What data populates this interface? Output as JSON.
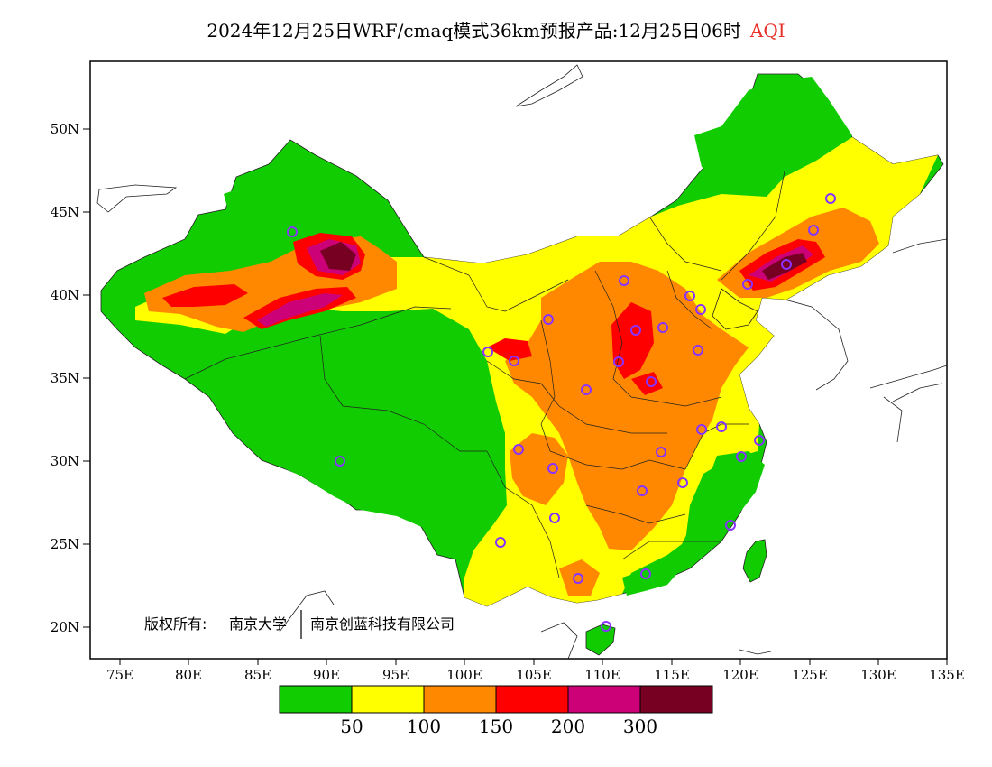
{
  "title": {
    "main": "2024年12月25日WRF/cmaq模式36km预报产品:12月25日06时",
    "variable": "AQI"
  },
  "axes": {
    "lat_ticks": [
      "50N",
      "45N",
      "40N",
      "35N",
      "30N",
      "25N",
      "20N"
    ],
    "lon_ticks": [
      "75E",
      "80E",
      "85E",
      "90E",
      "95E",
      "100E",
      "105E",
      "110E",
      "115E",
      "120E",
      "125E",
      "130E",
      "135E"
    ]
  },
  "copyright": {
    "prefix": "版权所有:",
    "org1": "南京大学",
    "org2": "南京创蓝科技有限公司"
  },
  "legend": {
    "colors": [
      "#11cc00",
      "#ffff00",
      "#ff8800",
      "#ff0000",
      "#cc0077",
      "#770022"
    ],
    "labels": [
      "50",
      "100",
      "150",
      "200",
      "300"
    ]
  }
}
